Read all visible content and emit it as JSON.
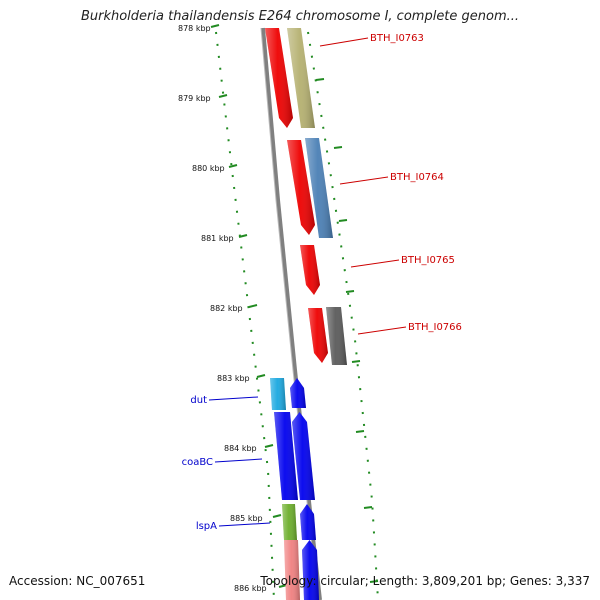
{
  "title": "Burkholderia thailandensis E264 chromosome I, complete genom...",
  "footer": {
    "accession": "Accession: NC_007651",
    "summary": "Topology: circular; Length: 3,809,201 bp; Genes: 3,337"
  },
  "colors": {
    "backbone": "#808080",
    "tick": "#228B22",
    "label_red": "#cc0000",
    "label_blue": "#0000cc"
  },
  "ruler": [
    "878 kbp",
    "879 kbp",
    "880 kbp",
    "881 kbp",
    "882 kbp",
    "883 kbp",
    "884 kbp",
    "885 kbp",
    "886 kbp"
  ],
  "gene_labels": [
    {
      "text": "BTH_I0763",
      "color": "red"
    },
    {
      "text": "BTH_I0764",
      "color": "red"
    },
    {
      "text": "BTH_I0765",
      "color": "red"
    },
    {
      "text": "BTH_I0766",
      "color": "red"
    },
    {
      "text": "dut",
      "color": "blue"
    },
    {
      "text": "coaBC",
      "color": "blue"
    },
    {
      "text": "lspA",
      "color": "blue"
    }
  ],
  "features": [
    {
      "name": "BTH_I0763 gene",
      "color": "#ee0000"
    },
    {
      "name": "BTH_I0763 CDS",
      "color": "#b5b070"
    },
    {
      "name": "BTH_I0764 gene",
      "color": "#ee0000"
    },
    {
      "name": "BTH_I0764 CDS",
      "color": "#4a7fb5"
    },
    {
      "name": "BTH_I0765 gene",
      "color": "#ee0000"
    },
    {
      "name": "BTH_I0766 gene",
      "color": "#ee0000"
    },
    {
      "name": "BTH_I0766 CDS",
      "color": "#5a5a5a"
    },
    {
      "name": "dut gene",
      "color": "#1aa8e0"
    },
    {
      "name": "dut CDS",
      "color": "#0000ee"
    },
    {
      "name": "coaBC gene",
      "color": "#0000ee"
    },
    {
      "name": "coaBC CDS",
      "color": "#0000ee"
    },
    {
      "name": "lspA gene",
      "color": "#6cae2a"
    },
    {
      "name": "lspA CDS",
      "color": "#0000ee"
    },
    {
      "name": "next gene",
      "color": "#f08080"
    },
    {
      "name": "next CDS",
      "color": "#0000ee"
    }
  ]
}
